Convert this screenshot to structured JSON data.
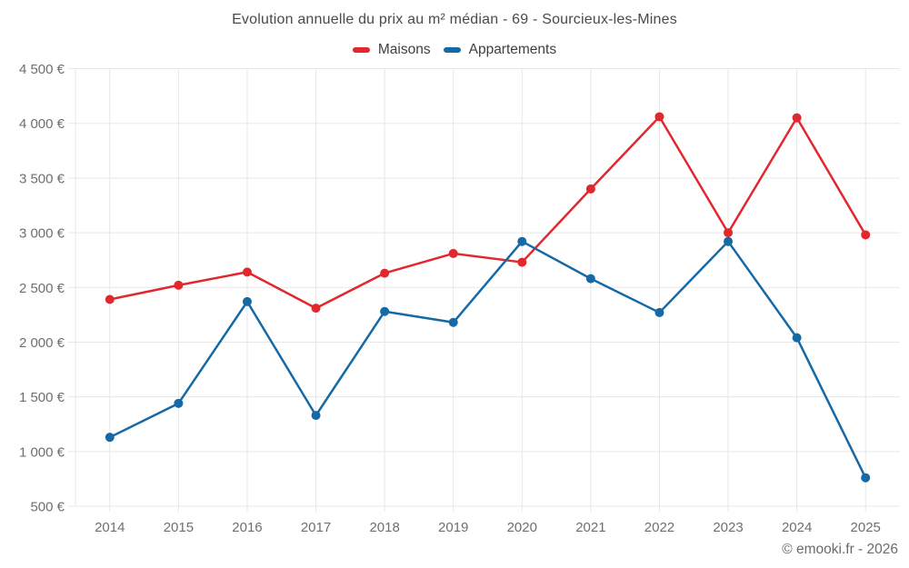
{
  "chart_data": {
    "type": "line",
    "title": "Evolution annuelle du prix au m² médian - 69 - Sourcieux-les-Mines",
    "categories": [
      "2014",
      "2015",
      "2016",
      "2017",
      "2018",
      "2019",
      "2020",
      "2021",
      "2022",
      "2023",
      "2024",
      "2025"
    ],
    "series": [
      {
        "name": "Maisons",
        "color": "#e0282e",
        "values": [
          2390,
          2520,
          2640,
          2310,
          2630,
          2810,
          2730,
          3400,
          4060,
          3000,
          4050,
          2980
        ]
      },
      {
        "name": "Appartements",
        "color": "#1569a5",
        "values": [
          1130,
          1440,
          2370,
          1330,
          2280,
          2180,
          2920,
          2580,
          2270,
          2920,
          2040,
          760
        ]
      }
    ],
    "ylim": [
      500,
      4500
    ],
    "y_tick_step": 500,
    "y_tick_labels": [
      "500 €",
      "1 000 €",
      "1 500 €",
      "2 000 €",
      "2 500 €",
      "3 000 €",
      "3 500 €",
      "4 000 €",
      "4 500 €"
    ],
    "grid": true,
    "legend_position": "top",
    "marker_radius": 5,
    "xlabel": "",
    "ylabel": ""
  },
  "colors": {
    "grid": "#e7e7e7",
    "axis_text": "#6f6f6f",
    "title_text": "#4a4a4a",
    "legend_text": "#3f3f3f",
    "credit_text": "#6b6b6b"
  },
  "footer": {
    "credit": "© emooki.fr - 2026"
  }
}
